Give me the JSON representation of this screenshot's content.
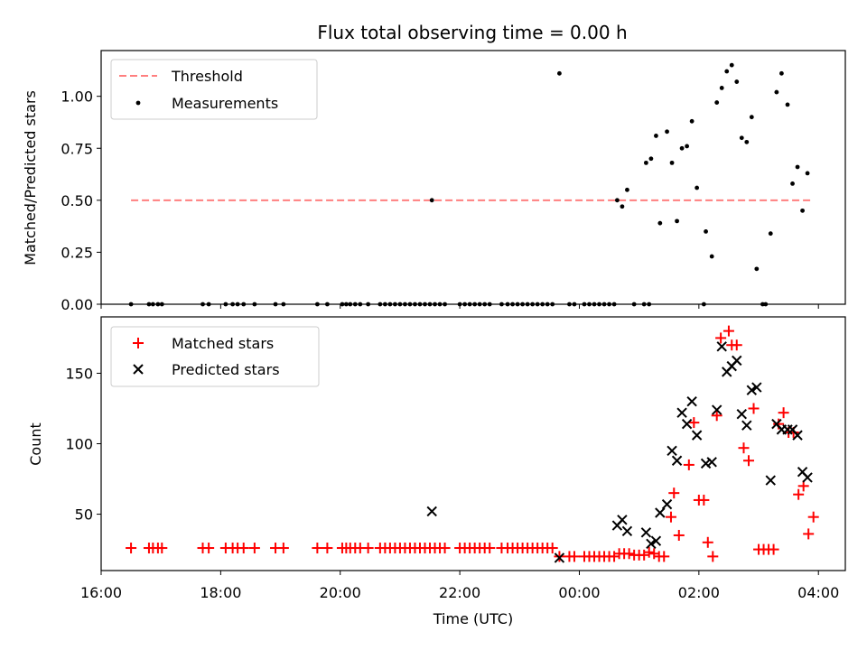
{
  "chart_data": [
    {
      "type": "scatter",
      "title": "Flux total observing time = 0.00 h",
      "xlabel": "",
      "ylabel": "Matched/Predicted stars",
      "xlim": [
        16.0,
        4.45
      ],
      "ylim": [
        0.0,
        1.22
      ],
      "yticks": [
        "0.00",
        "0.25",
        "0.50",
        "0.75",
        "1.00"
      ],
      "legend": {
        "position": "top-left",
        "entries": [
          "Threshold",
          "Measurements"
        ]
      },
      "threshold": {
        "name": "Threshold",
        "y": 0.5,
        "x_start": "16:30",
        "x_end": "03:55",
        "color": "#ff7f7f"
      },
      "series": [
        {
          "name": "Measurements",
          "color": "#000000",
          "points": [
            [
              "16:30",
              0
            ],
            [
              "16:48",
              0
            ],
            [
              "16:52",
              0
            ],
            [
              "16:57",
              0
            ],
            [
              "17:01",
              0
            ],
            [
              "17:42",
              0
            ],
            [
              "17:48",
              0
            ],
            [
              "18:05",
              0
            ],
            [
              "18:12",
              0
            ],
            [
              "18:17",
              0
            ],
            [
              "18:23",
              0
            ],
            [
              "18:34",
              0
            ],
            [
              "18:55",
              0
            ],
            [
              "19:03",
              0
            ],
            [
              "19:37",
              0
            ],
            [
              "19:47",
              0
            ],
            [
              "20:02",
              0
            ],
            [
              "20:06",
              0
            ],
            [
              "20:10",
              0
            ],
            [
              "20:15",
              0
            ],
            [
              "20:20",
              0
            ],
            [
              "20:28",
              0
            ],
            [
              "20:40",
              0
            ],
            [
              "20:45",
              0
            ],
            [
              "20:50",
              0
            ],
            [
              "20:55",
              0
            ],
            [
              "21:00",
              0
            ],
            [
              "21:05",
              0
            ],
            [
              "21:10",
              0
            ],
            [
              "21:15",
              0
            ],
            [
              "21:20",
              0
            ],
            [
              "21:25",
              0
            ],
            [
              "21:30",
              0
            ],
            [
              "21:35",
              0
            ],
            [
              "21:40",
              0
            ],
            [
              "21:45",
              0
            ],
            [
              "21:32",
              0.5
            ],
            [
              "22:00",
              0
            ],
            [
              "22:05",
              0
            ],
            [
              "22:10",
              0
            ],
            [
              "22:15",
              0
            ],
            [
              "22:20",
              0
            ],
            [
              "22:25",
              0
            ],
            [
              "22:30",
              0
            ],
            [
              "22:42",
              0
            ],
            [
              "22:48",
              0
            ],
            [
              "22:53",
              0
            ],
            [
              "22:58",
              0
            ],
            [
              "23:03",
              0
            ],
            [
              "23:08",
              0
            ],
            [
              "23:13",
              0
            ],
            [
              "23:18",
              0
            ],
            [
              "23:23",
              0
            ],
            [
              "23:28",
              0
            ],
            [
              "23:33",
              0
            ],
            [
              "23:40",
              1.11
            ],
            [
              "23:50",
              0
            ],
            [
              "23:55",
              0
            ],
            [
              "00:05",
              0
            ],
            [
              "00:10",
              0
            ],
            [
              "00:15",
              0
            ],
            [
              "00:20",
              0
            ],
            [
              "00:25",
              0
            ],
            [
              "00:30",
              0
            ],
            [
              "00:35",
              0
            ],
            [
              "00:38",
              0.5
            ],
            [
              "00:43",
              0.47
            ],
            [
              "00:48",
              0.55
            ],
            [
              "00:55",
              0
            ],
            [
              "01:05",
              0
            ],
            [
              "01:10",
              0
            ],
            [
              "01:07",
              0.68
            ],
            [
              "01:12",
              0.7
            ],
            [
              "01:17",
              0.81
            ],
            [
              "01:21",
              0.39
            ],
            [
              "01:28",
              0.83
            ],
            [
              "01:33",
              0.68
            ],
            [
              "01:38",
              0.4
            ],
            [
              "01:43",
              0.75
            ],
            [
              "01:48",
              0.76
            ],
            [
              "01:53",
              0.88
            ],
            [
              "01:58",
              0.56
            ],
            [
              "02:05",
              0
            ],
            [
              "02:07",
              0.35
            ],
            [
              "02:13",
              0.23
            ],
            [
              "02:18",
              0.97
            ],
            [
              "02:23",
              1.04
            ],
            [
              "02:28",
              1.12
            ],
            [
              "02:33",
              1.15
            ],
            [
              "02:38",
              1.07
            ],
            [
              "02:43",
              0.8
            ],
            [
              "02:48",
              0.78
            ],
            [
              "02:53",
              0.9
            ],
            [
              "02:58",
              0.17
            ],
            [
              "03:04",
              0
            ],
            [
              "03:07",
              0
            ],
            [
              "03:12",
              0.34
            ],
            [
              "03:18",
              1.02
            ],
            [
              "03:23",
              1.11
            ],
            [
              "03:29",
              0.96
            ],
            [
              "03:34",
              0.58
            ],
            [
              "03:39",
              0.66
            ],
            [
              "03:44",
              0.45
            ],
            [
              "03:49",
              0.63
            ]
          ]
        }
      ]
    },
    {
      "type": "scatter",
      "title": "",
      "xlabel": "Time (UTC)",
      "ylabel": "Count",
      "xlim": [
        16.0,
        4.45
      ],
      "ylim": [
        10,
        190
      ],
      "yticks": [
        "50",
        "100",
        "150"
      ],
      "xticks": [
        "16:00",
        "18:00",
        "20:00",
        "22:00",
        "00:00",
        "02:00",
        "04:00"
      ],
      "legend": {
        "position": "top-left",
        "entries": [
          "Matched stars",
          "Predicted stars"
        ]
      },
      "series": [
        {
          "name": "Matched stars",
          "marker": "plus",
          "color": "#ff0000",
          "points": [
            [
              "16:30",
              26
            ],
            [
              "16:48",
              26
            ],
            [
              "16:52",
              26
            ],
            [
              "16:57",
              26
            ],
            [
              "17:01",
              26
            ],
            [
              "17:42",
              26
            ],
            [
              "17:48",
              26
            ],
            [
              "18:05",
              26
            ],
            [
              "18:12",
              26
            ],
            [
              "18:17",
              26
            ],
            [
              "18:23",
              26
            ],
            [
              "18:34",
              26
            ],
            [
              "18:55",
              26
            ],
            [
              "19:03",
              26
            ],
            [
              "19:37",
              26
            ],
            [
              "19:47",
              26
            ],
            [
              "20:02",
              26
            ],
            [
              "20:06",
              26
            ],
            [
              "20:10",
              26
            ],
            [
              "20:15",
              26
            ],
            [
              "20:20",
              26
            ],
            [
              "20:28",
              26
            ],
            [
              "20:40",
              26
            ],
            [
              "20:45",
              26
            ],
            [
              "20:50",
              26
            ],
            [
              "20:55",
              26
            ],
            [
              "21:00",
              26
            ],
            [
              "21:05",
              26
            ],
            [
              "21:10",
              26
            ],
            [
              "21:15",
              26
            ],
            [
              "21:20",
              26
            ],
            [
              "21:25",
              26
            ],
            [
              "21:30",
              26
            ],
            [
              "21:35",
              26
            ],
            [
              "21:40",
              26
            ],
            [
              "21:45",
              26
            ],
            [
              "22:00",
              26
            ],
            [
              "22:05",
              26
            ],
            [
              "22:10",
              26
            ],
            [
              "22:15",
              26
            ],
            [
              "22:20",
              26
            ],
            [
              "22:25",
              26
            ],
            [
              "22:30",
              26
            ],
            [
              "22:42",
              26
            ],
            [
              "22:48",
              26
            ],
            [
              "22:53",
              26
            ],
            [
              "22:58",
              26
            ],
            [
              "23:03",
              26
            ],
            [
              "23:08",
              26
            ],
            [
              "23:13",
              26
            ],
            [
              "23:18",
              26
            ],
            [
              "23:23",
              26
            ],
            [
              "23:28",
              26
            ],
            [
              "23:33",
              26
            ],
            [
              "23:40",
              20
            ],
            [
              "23:50",
              20
            ],
            [
              "23:55",
              20
            ],
            [
              "00:05",
              20
            ],
            [
              "00:10",
              20
            ],
            [
              "00:15",
              20
            ],
            [
              "00:20",
              20
            ],
            [
              "00:25",
              20
            ],
            [
              "00:30",
              20
            ],
            [
              "00:35",
              20
            ],
            [
              "00:40",
              22
            ],
            [
              "00:45",
              22
            ],
            [
              "00:50",
              22
            ],
            [
              "00:55",
              21
            ],
            [
              "01:00",
              21
            ],
            [
              "01:05",
              21
            ],
            [
              "01:10",
              23
            ],
            [
              "01:15",
              22
            ],
            [
              "01:20",
              20
            ],
            [
              "01:25",
              20
            ],
            [
              "01:32",
              48
            ],
            [
              "01:35",
              65
            ],
            [
              "01:40",
              35
            ],
            [
              "01:50",
              85
            ],
            [
              "01:55",
              115
            ],
            [
              "02:00",
              60
            ],
            [
              "02:05",
              60
            ],
            [
              "02:09",
              30
            ],
            [
              "02:14",
              20
            ],
            [
              "02:18",
              120
            ],
            [
              "02:22",
              175
            ],
            [
              "02:30",
              180
            ],
            [
              "02:33",
              170
            ],
            [
              "02:38",
              170
            ],
            [
              "02:45",
              97
            ],
            [
              "02:50",
              88
            ],
            [
              "02:55",
              125
            ],
            [
              "03:00",
              25
            ],
            [
              "03:05",
              25
            ],
            [
              "03:10",
              25
            ],
            [
              "03:15",
              25
            ],
            [
              "03:20",
              114
            ],
            [
              "03:25",
              122
            ],
            [
              "03:30",
              108
            ],
            [
              "03:35",
              108
            ],
            [
              "03:40",
              64
            ],
            [
              "03:45",
              70
            ],
            [
              "03:50",
              36
            ],
            [
              "03:55",
              48
            ]
          ]
        },
        {
          "name": "Predicted stars",
          "marker": "x",
          "color": "#000000",
          "points": [
            [
              "21:32",
              52
            ],
            [
              "23:40",
              19
            ],
            [
              "00:38",
              42
            ],
            [
              "00:43",
              46
            ],
            [
              "00:48",
              38
            ],
            [
              "01:07",
              37
            ],
            [
              "01:12",
              29
            ],
            [
              "01:17",
              31
            ],
            [
              "01:21",
              51
            ],
            [
              "01:28",
              57
            ],
            [
              "01:33",
              95
            ],
            [
              "01:38",
              88
            ],
            [
              "01:43",
              122
            ],
            [
              "01:48",
              114
            ],
            [
              "01:53",
              130
            ],
            [
              "01:58",
              106
            ],
            [
              "02:07",
              86
            ],
            [
              "02:13",
              87
            ],
            [
              "02:18",
              124
            ],
            [
              "02:23",
              169
            ],
            [
              "02:28",
              151
            ],
            [
              "02:33",
              155
            ],
            [
              "02:38",
              159
            ],
            [
              "02:43",
              121
            ],
            [
              "02:48",
              113
            ],
            [
              "02:53",
              138
            ],
            [
              "02:58",
              140
            ],
            [
              "03:12",
              74
            ],
            [
              "03:18",
              114
            ],
            [
              "03:23",
              110
            ],
            [
              "03:29",
              110
            ],
            [
              "03:34",
              110
            ],
            [
              "03:39",
              106
            ],
            [
              "03:44",
              80
            ],
            [
              "03:49",
              76
            ]
          ]
        }
      ]
    }
  ]
}
